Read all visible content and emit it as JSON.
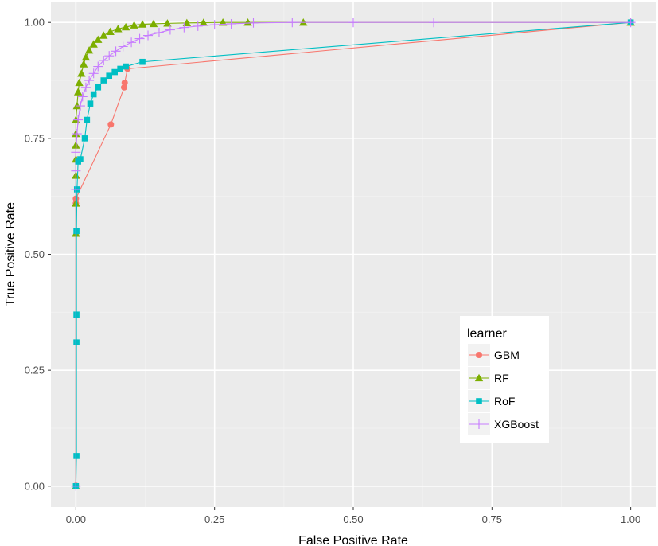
{
  "chart_data": {
    "type": "line",
    "xlabel": "False Positive Rate",
    "ylabel": "True Positive Rate",
    "xlim": [
      -0.045,
      1.045
    ],
    "ylim": [
      -0.045,
      1.045
    ],
    "x_ticks": [
      0,
      0.25,
      0.5,
      0.75,
      1
    ],
    "x_tick_labels": [
      "0.00",
      "0.25",
      "0.50",
      "0.75",
      "1.00"
    ],
    "y_ticks": [
      0,
      0.25,
      0.5,
      0.75,
      1
    ],
    "y_tick_labels": [
      "0.00",
      "0.25",
      "0.50",
      "0.75",
      "1.00"
    ],
    "grid": true,
    "legend": {
      "title": "learner",
      "position": "bottom-right-inside"
    },
    "series": [
      {
        "name": "GBM",
        "color": "#F8766D",
        "marker": "circle",
        "x": [
          0,
          0,
          0,
          0,
          0.063,
          0.087,
          0.088,
          0.093,
          1
        ],
        "y": [
          0,
          0.001,
          0.61,
          0.62,
          0.78,
          0.86,
          0.87,
          0.9,
          1
        ]
      },
      {
        "name": "RF",
        "color": "#7CAE00",
        "marker": "triangle",
        "x": [
          0,
          0,
          0,
          0,
          0,
          0,
          0,
          0,
          0.002,
          0.004,
          0.006,
          0.01,
          0.014,
          0.018,
          0.024,
          0.032,
          0.04,
          0.05,
          0.062,
          0.076,
          0.09,
          0.105,
          0.12,
          0.14,
          0.165,
          0.2,
          0.23,
          0.265,
          0.31,
          0.41,
          1
        ],
        "y": [
          0,
          0.545,
          0.61,
          0.67,
          0.705,
          0.735,
          0.76,
          0.79,
          0.82,
          0.85,
          0.87,
          0.89,
          0.91,
          0.925,
          0.94,
          0.953,
          0.963,
          0.972,
          0.98,
          0.986,
          0.99,
          0.994,
          0.996,
          0.997,
          0.998,
          0.999,
          0.9995,
          1,
          1,
          1,
          1
        ]
      },
      {
        "name": "RoF",
        "color": "#00BFC4",
        "marker": "square",
        "x": [
          0,
          0.001,
          0.001,
          0.001,
          0.001,
          0.002,
          0.004,
          0.008,
          0.016,
          0.02,
          0.026,
          0.032,
          0.04,
          0.05,
          0.06,
          0.07,
          0.08,
          0.09,
          0.12,
          1
        ],
        "y": [
          0,
          0.065,
          0.31,
          0.37,
          0.55,
          0.64,
          0.7,
          0.705,
          0.75,
          0.79,
          0.825,
          0.845,
          0.86,
          0.875,
          0.885,
          0.893,
          0.9,
          0.905,
          0.915,
          1
        ]
      },
      {
        "name": "XGBoost",
        "color": "#C77CFF",
        "marker": "plus",
        "x": [
          0,
          0,
          0,
          0,
          0.002,
          0.004,
          0.008,
          0.012,
          0.018,
          0.024,
          0.032,
          0.04,
          0.05,
          0.06,
          0.072,
          0.085,
          0.1,
          0.115,
          0.13,
          0.15,
          0.17,
          0.195,
          0.22,
          0.25,
          0.28,
          0.32,
          0.39,
          0.5,
          0.645,
          1
        ],
        "y": [
          0,
          0.64,
          0.68,
          0.72,
          0.76,
          0.79,
          0.82,
          0.84,
          0.86,
          0.875,
          0.89,
          0.905,
          0.918,
          0.928,
          0.938,
          0.948,
          0.957,
          0.965,
          0.972,
          0.978,
          0.984,
          0.989,
          0.992,
          0.995,
          0.997,
          0.999,
          1,
          1,
          1,
          1
        ]
      }
    ]
  }
}
